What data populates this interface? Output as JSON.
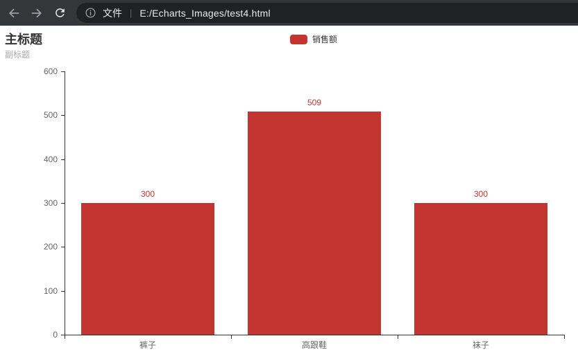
{
  "browser": {
    "file_label": "文件",
    "separator": "|",
    "url": "E:/Echarts_Images/test4.html"
  },
  "colors": {
    "toolbar_bg": "#35363a",
    "omnibox_bg": "#202124",
    "toolbar_icon": "#9aa0a6",
    "reload_icon": "#dee1e6",
    "axis": "#333333",
    "axis_label": "#666666",
    "title": "#333333",
    "subtitle": "#aaaaaa",
    "accent_red": "#c23531"
  },
  "chart_data": {
    "type": "bar",
    "title": "主标题",
    "subtitle": "副标题",
    "categories": [
      "裤子",
      "高跟鞋",
      "袜子"
    ],
    "series": [
      {
        "name": "销售额",
        "values": [
          300,
          509,
          300
        ]
      }
    ],
    "bar_labels": [
      "300",
      "509",
      "300"
    ],
    "xlabel": "",
    "ylabel": "",
    "ylim": [
      0,
      600
    ],
    "yticks": [
      0,
      100,
      200,
      300,
      400,
      500,
      600
    ],
    "grid_lines": false,
    "legend": {
      "position": "top-center",
      "items": [
        "销售额"
      ]
    },
    "bar_color": "#c23531",
    "value_label_color": "#c23531",
    "bar_width_ratio": 0.8
  }
}
